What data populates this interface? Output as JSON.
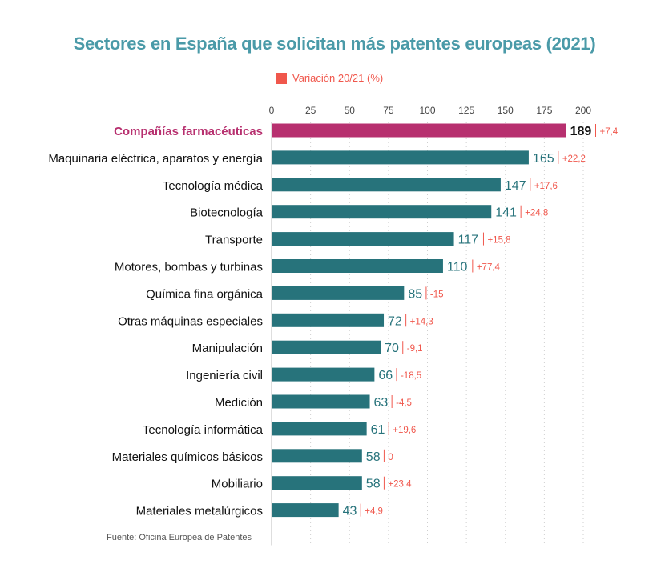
{
  "chart_data": {
    "type": "bar",
    "orientation": "horizontal",
    "title": "Sectores en España que solicitan más patentes europeas (2021)",
    "legend": "Variación 20/21 (%)",
    "source": "Fuente: Oficina Europea de Patentes",
    "xlim": [
      0,
      200
    ],
    "xticks": [
      "0",
      "25",
      "50",
      "75",
      "100",
      "125",
      "150",
      "175",
      "200"
    ],
    "grid": "vertical dashed",
    "categories": [
      "Compañías farmacéuticas",
      "Maquinaria eléctrica, aparatos y energía",
      "Tecnología médica",
      "Biotecnología",
      "Transporte",
      "Motores, bombas y turbinas",
      "Química fina orgánica",
      "Otras máquinas especiales",
      "Manipulación",
      "Ingeniería civil",
      "Medición",
      "Tecnología informática",
      "Materiales químicos básicos",
      "Mobiliario",
      "Materiales metalúrgicos"
    ],
    "values": [
      189,
      165,
      147,
      141,
      117,
      110,
      85,
      72,
      70,
      66,
      63,
      61,
      58,
      58,
      43
    ],
    "value_labels": [
      "189",
      "165",
      "147",
      "141",
      "117",
      "110",
      "85",
      "72",
      "70",
      "66",
      "63",
      "61",
      "58",
      "58",
      "43"
    ],
    "variation": [
      "+7,4",
      "+22,2",
      "+17,6",
      "+24,8",
      "+15,8",
      "+77,4",
      "-15",
      "+14,3",
      "-9,1",
      "-18,5",
      "-4,5",
      "+19,6",
      "0",
      "+23,4",
      "+4,9"
    ],
    "highlight_index": 0
  },
  "colors": {
    "title": "#4a9aa8",
    "bar": "#27737b",
    "highlight": "#b7306f",
    "variation": "#f0574c",
    "label": "#111111",
    "tick": "#444444",
    "grid": "#cfcfcf"
  }
}
